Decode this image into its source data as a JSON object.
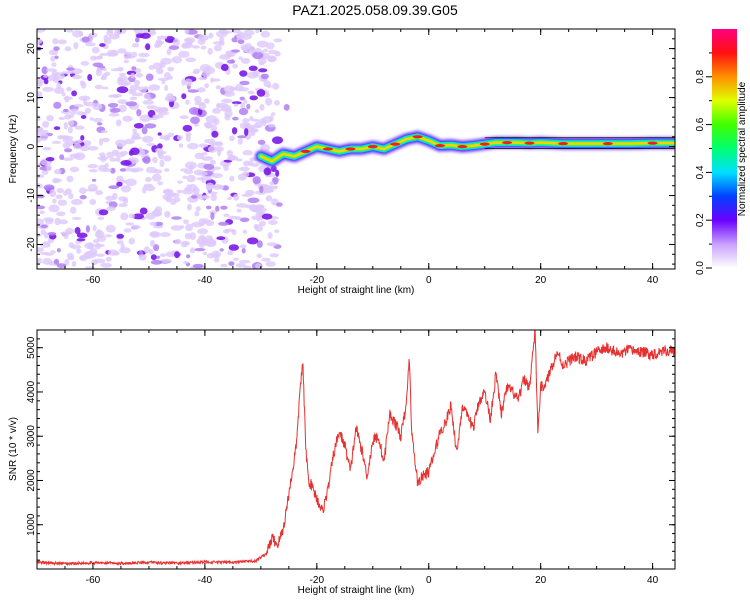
{
  "title": "PAZ1.2025.058.09.39.G05",
  "colors": {
    "snr_line": "#e8302f",
    "blob_light": "#ddc8fb",
    "blob_mid": "#b27ff5",
    "blob_dark": "#7a18e8"
  },
  "chart_data": [
    {
      "type": "heatmap",
      "title": "PAZ1.2025.058.09.39.G05",
      "xlabel": "Height of straight line (km)",
      "ylabel": "Frequency (Hz)",
      "xlim": [
        -70,
        44
      ],
      "ylim": [
        -25,
        24
      ],
      "x_ticks": [
        "-60",
        "-40",
        "-20",
        "0",
        "20",
        "40"
      ],
      "y_ticks": [
        "20",
        "10",
        "0",
        "-10",
        "-20"
      ],
      "colorbar": {
        "label": "Normalized spectral amplitude",
        "range": [
          0,
          1
        ],
        "ticks": [
          "0.0",
          "0.2",
          "0.4",
          "0.6",
          "0.8"
        ]
      },
      "noise_region_x": [
        -70,
        -27
      ],
      "ridge": {
        "x": [
          -30,
          -28,
          -26,
          -24,
          -22,
          -20,
          -18,
          -16,
          -14,
          -12,
          -10,
          -8,
          -6,
          -4,
          -2,
          0,
          2,
          4,
          6,
          8,
          10,
          12,
          14,
          16,
          18,
          20,
          24,
          28,
          32,
          36,
          40,
          44
        ],
        "freq": [
          -2,
          -3,
          -1.5,
          -2,
          -1,
          0,
          -0.5,
          -1,
          -0.5,
          -0.5,
          0,
          -0.5,
          0.5,
          1.5,
          2,
          1.2,
          0.2,
          0.3,
          0,
          0.2,
          0.5,
          0.8,
          0.8,
          0.8,
          0.7,
          0.8,
          0.6,
          0.6,
          0.6,
          0.6,
          0.7,
          0.7
        ]
      }
    },
    {
      "type": "line",
      "xlabel": "Height of straight line (km)",
      "ylabel": "SNR (10 * v/v)",
      "xlim": [
        -70,
        44
      ],
      "ylim": [
        0,
        5400
      ],
      "x_ticks": [
        "-60",
        "-40",
        "-20",
        "0",
        "20",
        "40"
      ],
      "y_ticks": [
        "1000",
        "2000",
        "3000",
        "4000",
        "5000"
      ],
      "series": [
        {
          "x": [
            -70,
            -65,
            -60,
            -55,
            -50,
            -45,
            -40,
            -35,
            -31,
            -29,
            -28,
            -27,
            -26,
            -25,
            -24,
            -23.5,
            -23,
            -22.5,
            -22,
            -21.5,
            -21,
            -20,
            -19,
            -18,
            -17,
            -16,
            -15,
            -14,
            -13,
            -12,
            -11,
            -10,
            -9,
            -8,
            -7,
            -6,
            -5,
            -4,
            -3.5,
            -3,
            -2.5,
            -2,
            -1,
            0,
            1,
            2,
            3,
            4,
            5,
            6,
            7,
            8,
            9,
            10,
            11,
            12,
            13,
            14,
            15,
            16,
            17,
            18,
            19,
            19.5,
            20,
            21,
            22,
            23,
            24,
            26,
            28,
            30,
            32,
            34,
            36,
            38,
            40,
            42,
            44
          ],
          "y": [
            150,
            120,
            140,
            130,
            150,
            130,
            160,
            150,
            180,
            350,
            700,
            550,
            900,
            1700,
            2500,
            3000,
            4100,
            4650,
            2800,
            2000,
            1900,
            1600,
            1300,
            1800,
            2600,
            3100,
            2800,
            2200,
            3200,
            2700,
            2100,
            2900,
            3000,
            2400,
            3500,
            3300,
            3000,
            3700,
            4800,
            3000,
            2500,
            1950,
            2100,
            2200,
            2600,
            3100,
            3300,
            3700,
            2600,
            3700,
            3400,
            3200,
            3800,
            4000,
            3400,
            4400,
            3500,
            4100,
            4000,
            3800,
            4300,
            4100,
            5400,
            3100,
            4100,
            4200,
            4600,
            4900,
            4600,
            4800,
            4700,
            4900,
            5000,
            4850,
            4950,
            4900,
            4850,
            4950,
            4900
          ]
        }
      ]
    }
  ]
}
